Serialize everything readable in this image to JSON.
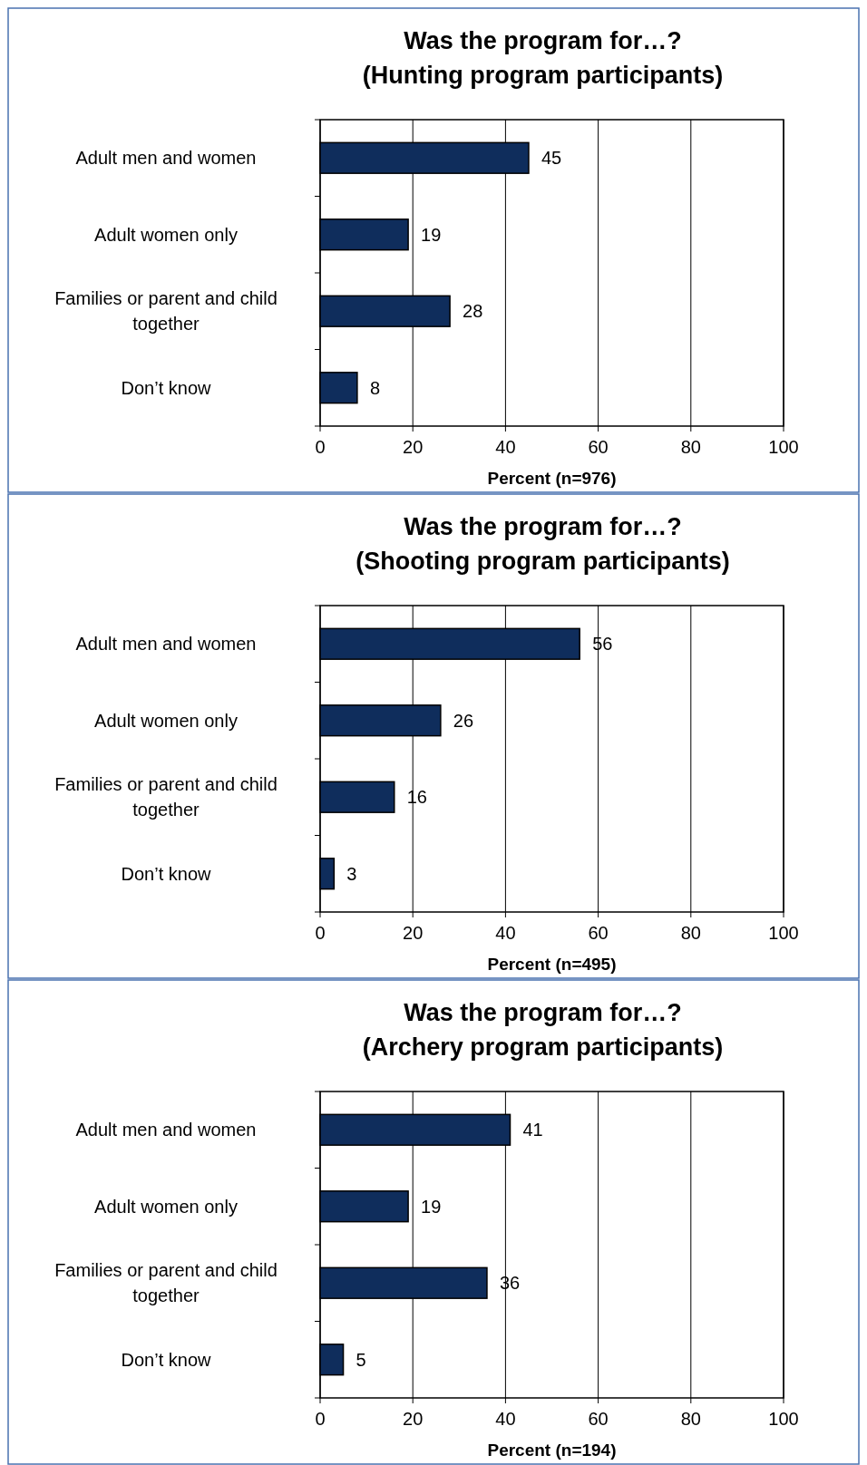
{
  "chart_data": [
    {
      "type": "bar",
      "orientation": "horizontal",
      "title": "Was the program for…?\n(Hunting program participants)",
      "xlabel": "Percent (n=976)",
      "categories": [
        "Adult men and women",
        "Adult women only",
        "Families or parent and child together",
        "Don’t know"
      ],
      "values": [
        45,
        19,
        28,
        8
      ],
      "color": "#0f2d5c",
      "xlim": [
        0,
        100
      ],
      "xticks": [
        0,
        20,
        40,
        60,
        80,
        100
      ],
      "grid": "x",
      "data_labels": true
    },
    {
      "type": "bar",
      "orientation": "horizontal",
      "title": "Was the program for…?\n(Shooting program participants)",
      "xlabel": "Percent (n=495)",
      "categories": [
        "Adult men and women",
        "Adult women only",
        "Families or parent and child together",
        "Don’t know"
      ],
      "values": [
        56,
        26,
        16,
        3
      ],
      "color": "#0f2d5c",
      "xlim": [
        0,
        100
      ],
      "xticks": [
        0,
        20,
        40,
        60,
        80,
        100
      ],
      "grid": "x",
      "data_labels": true
    },
    {
      "type": "bar",
      "orientation": "horizontal",
      "title": "Was the program for…?\n(Archery program participants)",
      "xlabel": "Percent (n=194)",
      "categories": [
        "Adult men and women",
        "Adult women only",
        "Families or parent and child together",
        "Don’t know"
      ],
      "values": [
        41,
        19,
        36,
        5
      ],
      "color": "#0f2d5c",
      "xlim": [
        0,
        100
      ],
      "xticks": [
        0,
        20,
        40,
        60,
        80,
        100
      ],
      "grid": "x",
      "data_labels": true
    }
  ]
}
